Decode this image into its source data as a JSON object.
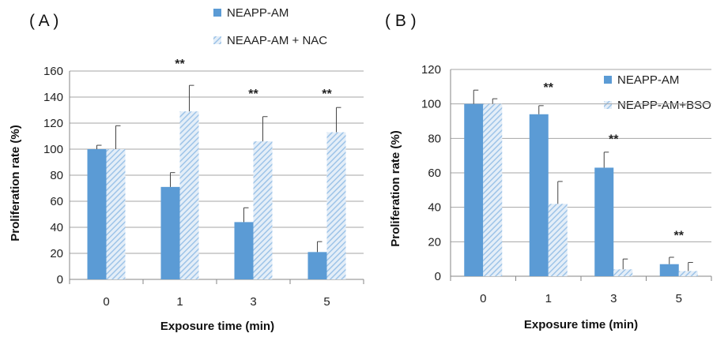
{
  "colors": {
    "solid": "#5b9bd5",
    "hatch_fg": "#9ec4e8",
    "hatch_bg": "#e4eef8",
    "grid": "#a6a6a6",
    "axis": "#868686",
    "error": "#444444"
  },
  "chart_data": [
    {
      "type": "bar",
      "panel_label": "( A )",
      "categories": [
        "0",
        "1",
        "3",
        "5"
      ],
      "xlabel": "Exposure time (min)",
      "ylabel": "Proliferation rate (%)",
      "ylim": [
        0,
        160
      ],
      "yticks": [
        "0",
        "20",
        "40",
        "60",
        "80",
        "100",
        "120",
        "140",
        "160"
      ],
      "grid": true,
      "legend_position": "top",
      "series": [
        {
          "name": "NEAPP-AM",
          "pattern": "solid",
          "values": [
            100,
            71,
            44,
            21
          ],
          "errors": [
            3,
            11,
            11,
            8
          ]
        },
        {
          "name": "NEAAP-AM + NAC",
          "pattern": "hatched",
          "values": [
            100,
            129,
            106,
            113
          ],
          "errors": [
            18,
            20,
            19,
            19
          ]
        }
      ],
      "annotations": [
        {
          "category": "1",
          "text": "**",
          "y": 166
        },
        {
          "category": "3",
          "text": "**",
          "y": 143
        },
        {
          "category": "5",
          "text": "**",
          "y": 143
        }
      ]
    },
    {
      "type": "bar",
      "panel_label": "( B )",
      "categories": [
        "0",
        "1",
        "3",
        "5"
      ],
      "xlabel": "Exposure time (min)",
      "ylabel": "Proliferation rate (%)",
      "ylim": [
        0,
        120
      ],
      "yticks": [
        "0",
        "20",
        "40",
        "60",
        "80",
        "100",
        "120"
      ],
      "grid": true,
      "legend_position": "top-right",
      "series": [
        {
          "name": "NEAPP-AM",
          "pattern": "solid",
          "values": [
            100,
            94,
            63,
            7
          ],
          "errors": [
            8,
            5,
            9,
            4
          ]
        },
        {
          "name": "NEAPP-AM+BSO",
          "pattern": "hatched",
          "values": [
            100,
            42,
            4,
            3
          ],
          "errors": [
            3,
            13,
            6,
            5
          ]
        }
      ],
      "annotations": [
        {
          "category": "1",
          "text": "**",
          "y": 110
        },
        {
          "category": "3",
          "text": "**",
          "y": 80
        },
        {
          "category": "5",
          "text": "**",
          "y": 24
        }
      ]
    }
  ]
}
